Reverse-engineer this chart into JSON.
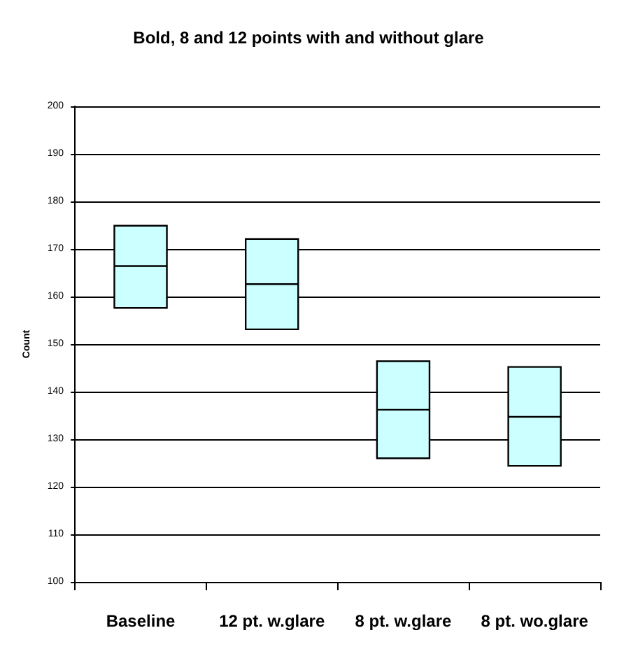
{
  "chart_data": {
    "type": "box",
    "title": "Bold, 8 and 12 points with and without glare",
    "ylabel": "Count",
    "categories": [
      "Baseline",
      "12 pt. w.glare",
      "8 pt. w.glare",
      "8 pt. wo.glare"
    ],
    "color": "#ccffff",
    "boxes": [
      {
        "low": 157.6,
        "q1": 157.6,
        "median": 166.4,
        "q3": 174.9,
        "high": 174.9
      },
      {
        "low": 153.1,
        "q1": 153.1,
        "median": 162.6,
        "q3": 172.1,
        "high": 172.1
      },
      {
        "low": 126,
        "q1": 126,
        "median": 136.2,
        "q3": 146.4,
        "high": 146.4
      },
      {
        "low": 124.4,
        "q1": 124.4,
        "median": 134.7,
        "q3": 145.2,
        "high": 145.2
      }
    ],
    "ylim": [
      100,
      200
    ],
    "yticks": [
      100,
      110,
      120,
      130,
      140,
      150,
      160,
      170,
      180,
      190,
      200
    ],
    "grid": "y"
  }
}
